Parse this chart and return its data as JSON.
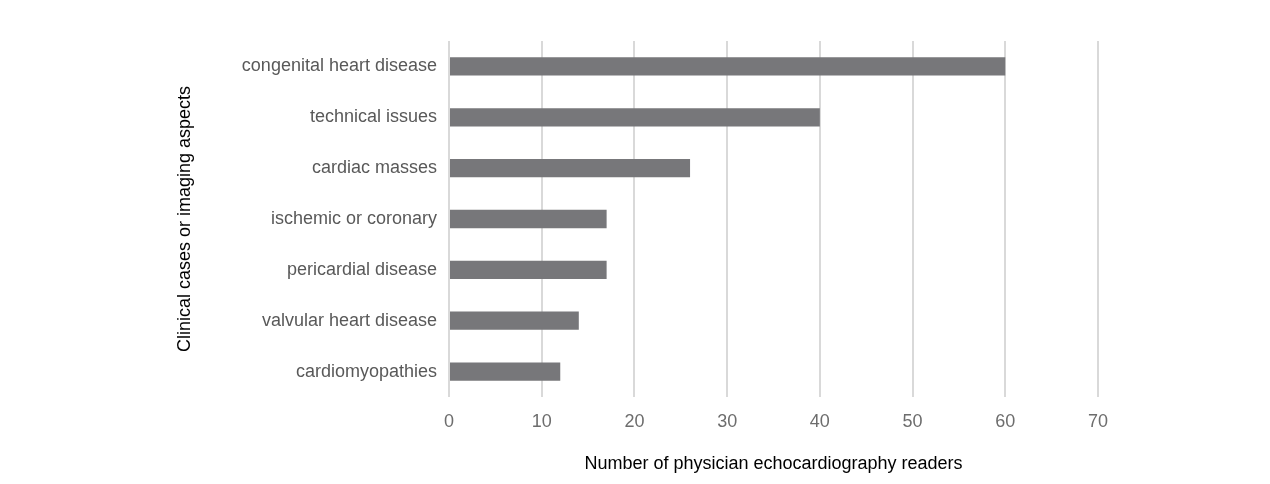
{
  "chart_data": {
    "type": "bar",
    "orientation": "horizontal",
    "xlabel": "Number of physician echocardiography readers",
    "ylabel": "Clinical cases or imaging aspects",
    "categories": [
      "congenital heart disease",
      "technical issues",
      "cardiac masses",
      "ischemic or coronary",
      "pericardial disease",
      "valvular heart disease",
      "cardiomyopathies"
    ],
    "values": [
      60,
      40,
      26,
      17,
      17,
      14,
      12
    ],
    "color": "#77777a",
    "xlim": [
      0,
      70
    ],
    "xticks": [
      0,
      10,
      20,
      30,
      40,
      50,
      60,
      70
    ],
    "grid": "x",
    "legend": false
  }
}
